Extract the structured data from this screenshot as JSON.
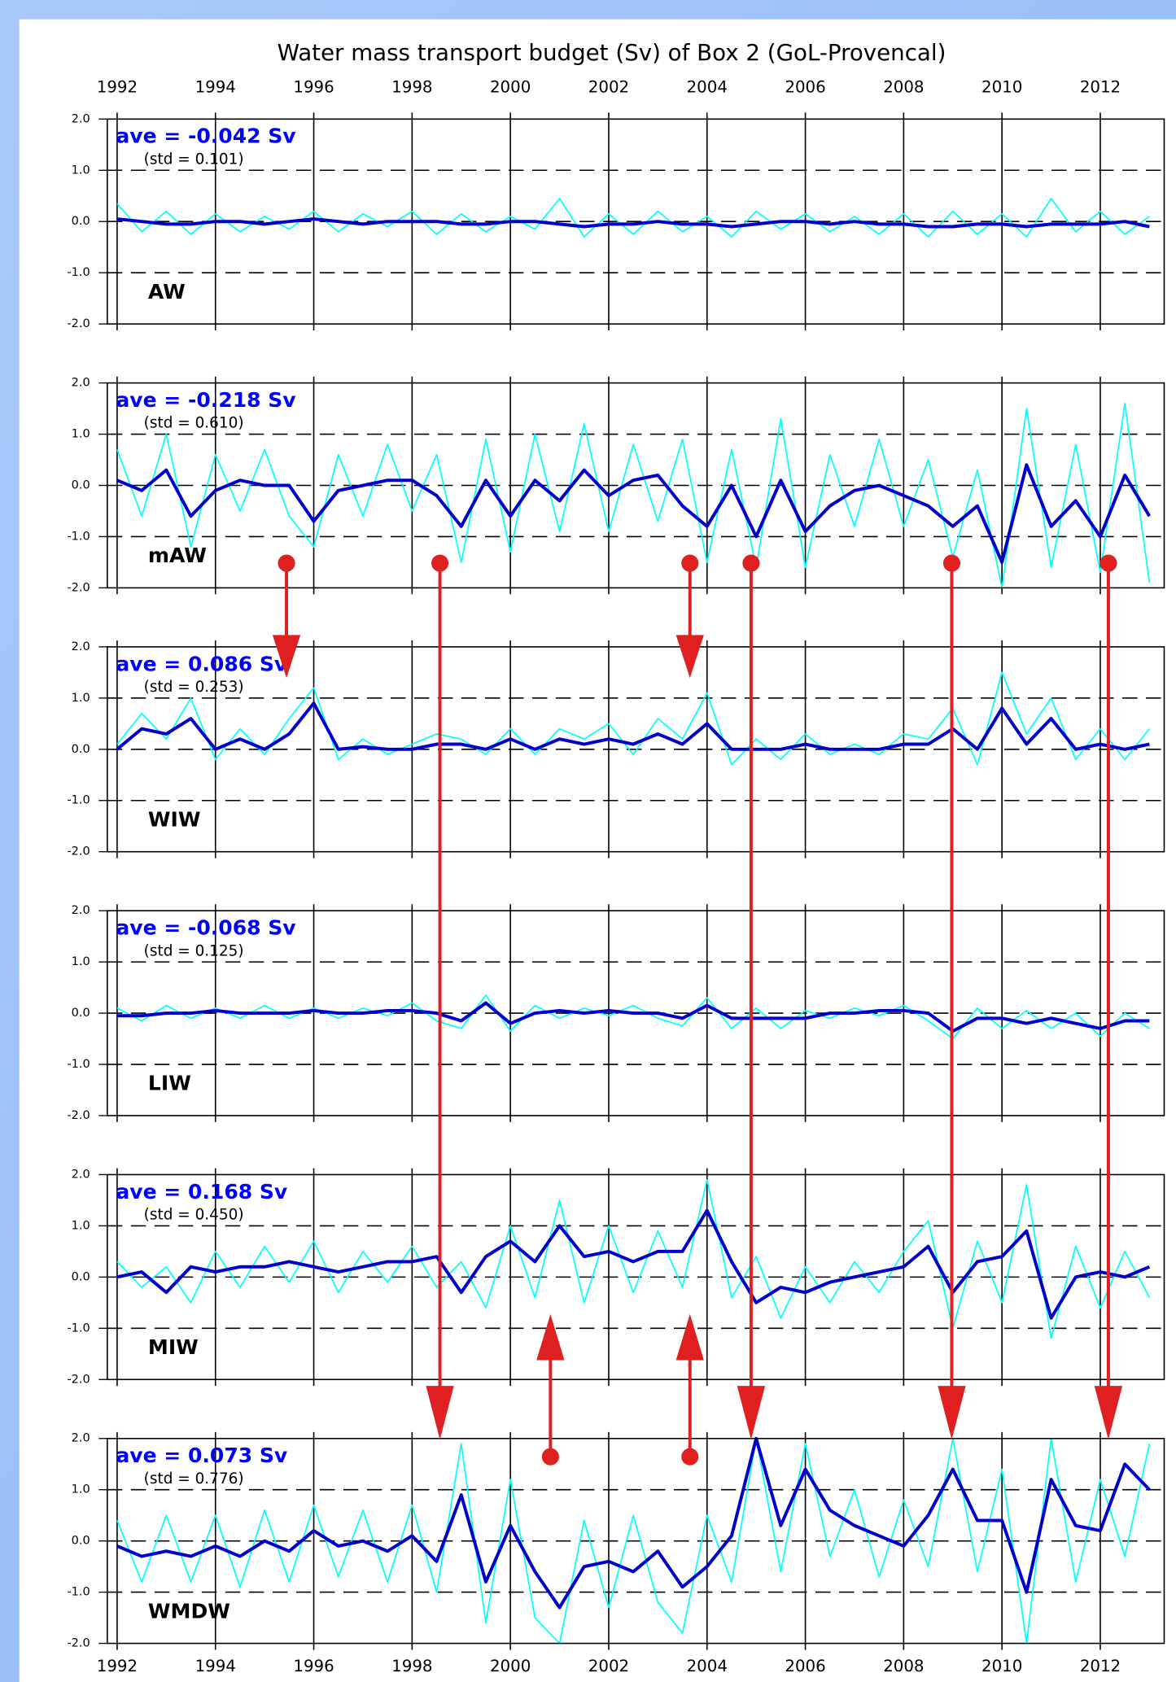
{
  "title": "Water mass transport budget (Sv) of Box 2 (GoL-Provencal)",
  "chart_data": [
    {
      "type": "line",
      "label": "AW",
      "annotations": [
        "ave = -0.042 Sv",
        "(std = 0.101)"
      ],
      "x": [
        1992,
        1992.5,
        1993,
        1993.5,
        1994,
        1994.5,
        1995,
        1995.5,
        1996,
        1996.5,
        1997,
        1997.5,
        1998,
        1998.5,
        1999,
        1999.5,
        2000,
        2000.5,
        2001,
        2001.5,
        2002,
        2002.5,
        2003,
        2003.5,
        2004,
        2004.5,
        2005,
        2005.5,
        2006,
        2006.5,
        2007,
        2007.5,
        2008,
        2008.5,
        2009,
        2009.5,
        2010,
        2010.5,
        2011,
        2011.5,
        2012,
        2012.5,
        2013
      ],
      "series": [
        {
          "color": "#00ffff",
          "values": [
            0.35,
            -0.2,
            0.2,
            -0.25,
            0.15,
            -0.2,
            0.1,
            -0.15,
            0.2,
            -0.2,
            0.15,
            -0.1,
            0.2,
            -0.25,
            0.15,
            -0.2,
            0.1,
            -0.15,
            0.45,
            -0.3,
            0.15,
            -0.25,
            0.2,
            -0.2,
            0.1,
            -0.3,
            0.2,
            -0.15,
            0.15,
            -0.2,
            0.1,
            -0.25,
            0.15,
            -0.3,
            0.2,
            -0.25,
            0.15,
            -0.3,
            0.45,
            -0.2,
            0.2,
            -0.25,
            0.1
          ]
        },
        {
          "color": "#0000cc",
          "values": [
            0.05,
            0.0,
            -0.05,
            -0.05,
            0.0,
            0.0,
            -0.05,
            0.0,
            0.05,
            0.0,
            -0.05,
            0.0,
            0.0,
            0.0,
            -0.05,
            -0.05,
            0.0,
            0.0,
            -0.05,
            -0.1,
            -0.05,
            -0.05,
            0.0,
            -0.05,
            -0.05,
            -0.1,
            -0.05,
            0.0,
            0.0,
            -0.05,
            0.0,
            -0.05,
            -0.05,
            -0.1,
            -0.1,
            -0.05,
            -0.05,
            -0.1,
            -0.05,
            -0.05,
            -0.05,
            0.0,
            -0.1
          ]
        }
      ],
      "xlim": [
        1991.8,
        2013.3
      ],
      "xticks": [
        1992,
        1994,
        1996,
        1998,
        2000,
        2002,
        2004,
        2006,
        2008,
        2010,
        2012
      ],
      "ylim": [
        -2,
        2
      ],
      "yticks": [
        {
          "value": -2,
          "label": "-2.0"
        },
        {
          "value": -1,
          "label": "-1.0"
        },
        {
          "value": 0,
          "label": "0.0"
        },
        {
          "value": 1,
          "label": "1.0"
        },
        {
          "value": 2,
          "label": "2.0"
        }
      ],
      "grid": true
    },
    {
      "type": "line",
      "label": "mAW",
      "annotations": [
        "ave = -0.218 Sv",
        "(std = 0.610)"
      ],
      "x": [
        1992,
        1992.5,
        1993,
        1993.5,
        1994,
        1994.5,
        1995,
        1995.5,
        1996,
        1996.5,
        1997,
        1997.5,
        1998,
        1998.5,
        1999,
        1999.5,
        2000,
        2000.5,
        2001,
        2001.5,
        2002,
        2002.5,
        2003,
        2003.5,
        2004,
        2004.5,
        2005,
        2005.5,
        2006,
        2006.5,
        2007,
        2007.5,
        2008,
        2008.5,
        2009,
        2009.5,
        2010,
        2010.5,
        2011,
        2011.5,
        2012,
        2012.5,
        2013
      ],
      "series": [
        {
          "color": "#00ffff",
          "values": [
            0.7,
            -0.6,
            1.0,
            -1.2,
            0.6,
            -0.5,
            0.7,
            -0.6,
            -1.2,
            0.6,
            -0.6,
            0.8,
            -0.5,
            0.6,
            -1.5,
            0.9,
            -1.3,
            1.0,
            -0.9,
            1.2,
            -0.9,
            0.8,
            -0.7,
            0.9,
            -1.5,
            0.7,
            -1.6,
            1.3,
            -1.6,
            0.6,
            -0.8,
            0.9,
            -0.8,
            0.5,
            -1.4,
            0.3,
            -2.0,
            1.5,
            -1.6,
            0.8,
            -1.7,
            1.6,
            -1.9
          ]
        },
        {
          "color": "#0000cc",
          "values": [
            0.1,
            -0.1,
            0.3,
            -0.6,
            -0.1,
            0.1,
            0.0,
            0.0,
            -0.7,
            -0.1,
            0.0,
            0.1,
            0.1,
            -0.2,
            -0.8,
            0.1,
            -0.6,
            0.1,
            -0.3,
            0.3,
            -0.2,
            0.1,
            0.2,
            -0.4,
            -0.8,
            0.0,
            -1.0,
            0.1,
            -0.9,
            -0.4,
            -0.1,
            0.0,
            -0.2,
            -0.4,
            -0.8,
            -0.4,
            -1.5,
            0.4,
            -0.8,
            -0.3,
            -1.0,
            0.2,
            -0.6
          ]
        }
      ],
      "xlim": [
        1991.8,
        2013.3
      ],
      "xticks": [
        1992,
        1994,
        1996,
        1998,
        2000,
        2002,
        2004,
        2006,
        2008,
        2010,
        2012
      ],
      "ylim": [
        -2,
        2
      ],
      "yticks": [
        {
          "value": -2,
          "label": "-2.0"
        },
        {
          "value": -1,
          "label": "-1.0"
        },
        {
          "value": 0,
          "label": "0.0"
        },
        {
          "value": 1,
          "label": "1.0"
        },
        {
          "value": 2,
          "label": "2.0"
        }
      ],
      "grid": true
    },
    {
      "type": "line",
      "label": "WIW",
      "annotations": [
        "ave = 0.086 Sv",
        "(std = 0.253)"
      ],
      "x": [
        1992,
        1992.5,
        1993,
        1993.5,
        1994,
        1994.5,
        1995,
        1995.5,
        1996,
        1996.5,
        1997,
        1997.5,
        1998,
        1998.5,
        1999,
        1999.5,
        2000,
        2000.5,
        2001,
        2001.5,
        2002,
        2002.5,
        2003,
        2003.5,
        2004,
        2004.5,
        2005,
        2005.5,
        2006,
        2006.5,
        2007,
        2007.5,
        2008,
        2008.5,
        2009,
        2009.5,
        2010,
        2010.5,
        2011,
        2011.5,
        2012,
        2012.5,
        2013
      ],
      "series": [
        {
          "color": "#00ffff",
          "values": [
            0.1,
            0.7,
            0.2,
            1.0,
            -0.2,
            0.4,
            -0.1,
            0.6,
            1.2,
            -0.2,
            0.2,
            -0.1,
            0.1,
            0.3,
            0.2,
            -0.1,
            0.4,
            -0.1,
            0.4,
            0.2,
            0.5,
            -0.1,
            0.6,
            0.2,
            1.1,
            -0.3,
            0.2,
            -0.2,
            0.3,
            -0.1,
            0.1,
            -0.1,
            0.3,
            0.2,
            0.8,
            -0.3,
            1.5,
            0.3,
            1.0,
            -0.2,
            0.4,
            -0.2,
            0.4
          ]
        },
        {
          "color": "#0000cc",
          "values": [
            0.0,
            0.4,
            0.3,
            0.6,
            0.0,
            0.2,
            0.0,
            0.3,
            0.9,
            0.0,
            0.05,
            0.0,
            0.0,
            0.1,
            0.1,
            0.0,
            0.2,
            0.0,
            0.2,
            0.1,
            0.2,
            0.1,
            0.3,
            0.1,
            0.5,
            0.0,
            0.0,
            0.0,
            0.1,
            0.0,
            0.0,
            0.0,
            0.1,
            0.1,
            0.4,
            0.0,
            0.8,
            0.1,
            0.6,
            0.0,
            0.1,
            0.0,
            0.1
          ]
        }
      ],
      "xlim": [
        1991.8,
        2013.3
      ],
      "xticks": [
        1992,
        1994,
        1996,
        1998,
        2000,
        2002,
        2004,
        2006,
        2008,
        2010,
        2012
      ],
      "ylim": [
        -2,
        2
      ],
      "yticks": [
        {
          "value": -2,
          "label": "-2.0"
        },
        {
          "value": -1,
          "label": "-1.0"
        },
        {
          "value": 0,
          "label": "0.0"
        },
        {
          "value": 1,
          "label": "1.0"
        },
        {
          "value": 2,
          "label": "2.0"
        }
      ],
      "grid": true
    },
    {
      "type": "line",
      "label": "LIW",
      "annotations": [
        "ave = -0.068 Sv",
        "(std = 0.125)"
      ],
      "x": [
        1992,
        1992.5,
        1993,
        1993.5,
        1994,
        1994.5,
        1995,
        1995.5,
        1996,
        1996.5,
        1997,
        1997.5,
        1998,
        1998.5,
        1999,
        1999.5,
        2000,
        2000.5,
        2001,
        2001.5,
        2002,
        2002.5,
        2003,
        2003.5,
        2004,
        2004.5,
        2005,
        2005.5,
        2006,
        2006.5,
        2007,
        2007.5,
        2008,
        2008.5,
        2009,
        2009.5,
        2010,
        2010.5,
        2011,
        2011.5,
        2012,
        2012.5,
        2013
      ],
      "series": [
        {
          "color": "#00ffff",
          "values": [
            0.1,
            -0.15,
            0.15,
            -0.1,
            0.1,
            -0.1,
            0.15,
            -0.1,
            0.1,
            -0.1,
            0.1,
            -0.05,
            0.2,
            -0.15,
            -0.3,
            0.35,
            -0.35,
            0.15,
            -0.1,
            0.1,
            -0.05,
            0.15,
            -0.1,
            -0.25,
            0.3,
            -0.3,
            0.1,
            -0.3,
            0.05,
            -0.1,
            0.1,
            -0.05,
            0.15,
            -0.15,
            -0.5,
            0.1,
            -0.3,
            0.05,
            -0.3,
            0.0,
            -0.45,
            0.0,
            -0.3
          ]
        },
        {
          "color": "#0000cc",
          "values": [
            -0.05,
            -0.05,
            0.0,
            0.0,
            0.05,
            0.0,
            0.0,
            0.0,
            0.05,
            0.0,
            0.0,
            0.05,
            0.05,
            0.0,
            -0.15,
            0.2,
            -0.2,
            0.0,
            0.05,
            0.0,
            0.05,
            0.0,
            0.0,
            -0.1,
            0.15,
            -0.1,
            -0.1,
            -0.1,
            -0.1,
            0.0,
            0.0,
            0.05,
            0.05,
            0.0,
            -0.35,
            -0.1,
            -0.1,
            -0.2,
            -0.1,
            -0.2,
            -0.3,
            -0.15,
            -0.15
          ]
        }
      ],
      "xlim": [
        1991.8,
        2013.3
      ],
      "xticks": [
        1992,
        1994,
        1996,
        1998,
        2000,
        2002,
        2004,
        2006,
        2008,
        2010,
        2012
      ],
      "ylim": [
        -2,
        2
      ],
      "yticks": [
        {
          "value": -2,
          "label": "-2.0"
        },
        {
          "value": -1,
          "label": "-1.0"
        },
        {
          "value": 0,
          "label": "0.0"
        },
        {
          "value": 1,
          "label": "1.0"
        },
        {
          "value": 2,
          "label": "2.0"
        }
      ],
      "grid": true
    },
    {
      "type": "line",
      "label": "MIW",
      "annotations": [
        "ave = 0.168 Sv",
        "(std = 0.450)"
      ],
      "x": [
        1992,
        1992.5,
        1993,
        1993.5,
        1994,
        1994.5,
        1995,
        1995.5,
        1996,
        1996.5,
        1997,
        1997.5,
        1998,
        1998.5,
        1999,
        1999.5,
        2000,
        2000.5,
        2001,
        2001.5,
        2002,
        2002.5,
        2003,
        2003.5,
        2004,
        2004.5,
        2005,
        2005.5,
        2006,
        2006.5,
        2007,
        2007.5,
        2008,
        2008.5,
        2009,
        2009.5,
        2010,
        2010.5,
        2011,
        2011.5,
        2012,
        2012.5,
        2013
      ],
      "series": [
        {
          "color": "#00ffff",
          "values": [
            0.3,
            -0.2,
            0.2,
            -0.5,
            0.5,
            -0.2,
            0.6,
            -0.1,
            0.7,
            -0.3,
            0.5,
            -0.1,
            0.6,
            -0.2,
            0.3,
            -0.6,
            1.0,
            -0.4,
            1.5,
            -0.5,
            1.0,
            -0.3,
            0.9,
            -0.2,
            1.9,
            -0.4,
            0.4,
            -0.8,
            0.2,
            -0.5,
            0.3,
            -0.3,
            0.5,
            1.1,
            -1.0,
            0.7,
            -0.5,
            1.8,
            -1.2,
            0.6,
            -0.6,
            0.5,
            -0.4
          ]
        },
        {
          "color": "#0000cc",
          "values": [
            0.0,
            0.1,
            -0.3,
            0.2,
            0.1,
            0.2,
            0.2,
            0.3,
            0.2,
            0.1,
            0.2,
            0.3,
            0.3,
            0.4,
            -0.3,
            0.4,
            0.7,
            0.3,
            1.0,
            0.4,
            0.5,
            0.3,
            0.5,
            0.5,
            1.3,
            0.3,
            -0.5,
            -0.2,
            -0.3,
            -0.1,
            0.0,
            0.1,
            0.2,
            0.6,
            -0.3,
            0.3,
            0.4,
            0.9,
            -0.8,
            0.0,
            0.1,
            0.0,
            0.2
          ]
        }
      ],
      "xlim": [
        1991.8,
        2013.3
      ],
      "xticks": [
        1992,
        1994,
        1996,
        1998,
        2000,
        2002,
        2004,
        2006,
        2008,
        2010,
        2012
      ],
      "ylim": [
        -2,
        2
      ],
      "yticks": [
        {
          "value": -2,
          "label": "-2.0"
        },
        {
          "value": -1,
          "label": "-1.0"
        },
        {
          "value": 0,
          "label": "0.0"
        },
        {
          "value": 1,
          "label": "1.0"
        },
        {
          "value": 2,
          "label": "2.0"
        }
      ],
      "grid": true
    },
    {
      "type": "line",
      "label": "WMDW",
      "annotations": [
        "ave = 0.073 Sv",
        "(std = 0.776)"
      ],
      "x": [
        1992,
        1992.5,
        1993,
        1993.5,
        1994,
        1994.5,
        1995,
        1995.5,
        1996,
        1996.5,
        1997,
        1997.5,
        1998,
        1998.5,
        1999,
        1999.5,
        2000,
        2000.5,
        2001,
        2001.5,
        2002,
        2002.5,
        2003,
        2003.5,
        2004,
        2004.5,
        2005,
        2005.5,
        2006,
        2006.5,
        2007,
        2007.5,
        2008,
        2008.5,
        2009,
        2009.5,
        2010,
        2010.5,
        2011,
        2011.5,
        2012,
        2012.5,
        2013
      ],
      "series": [
        {
          "color": "#00ffff",
          "values": [
            0.4,
            -0.8,
            0.5,
            -0.8,
            0.5,
            -0.9,
            0.6,
            -0.8,
            0.7,
            -0.7,
            0.6,
            -0.8,
            0.7,
            -1.0,
            1.9,
            -1.6,
            1.2,
            -1.5,
            -2.0,
            0.4,
            -1.3,
            0.5,
            -1.2,
            -1.8,
            0.5,
            -0.8,
            2.0,
            -0.6,
            1.9,
            -0.3,
            1.0,
            -0.7,
            0.8,
            -0.5,
            2.0,
            -0.6,
            1.4,
            -2.0,
            2.0,
            -0.8,
            1.2,
            -0.3,
            1.9
          ]
        },
        {
          "color": "#0000cc",
          "values": [
            -0.1,
            -0.3,
            -0.2,
            -0.3,
            -0.1,
            -0.3,
            0.0,
            -0.2,
            0.2,
            -0.1,
            0.0,
            -0.2,
            0.1,
            -0.4,
            0.9,
            -0.8,
            0.3,
            -0.6,
            -1.3,
            -0.5,
            -0.4,
            -0.6,
            -0.2,
            -0.9,
            -0.5,
            0.1,
            2.0,
            0.3,
            1.4,
            0.6,
            0.3,
            0.1,
            -0.1,
            0.5,
            1.4,
            0.4,
            0.4,
            -1.0,
            1.2,
            0.3,
            0.2,
            1.5,
            1.0
          ]
        }
      ],
      "xlim": [
        1991.8,
        2013.3
      ],
      "xticks": [
        1992,
        1994,
        1996,
        1998,
        2000,
        2002,
        2004,
        2006,
        2008,
        2010,
        2012
      ],
      "ylim": [
        -2,
        2
      ],
      "yticks": [
        {
          "value": -2,
          "label": "-2.0"
        },
        {
          "value": -1,
          "label": "-1.0"
        },
        {
          "value": 0,
          "label": "0.0"
        },
        {
          "value": 1,
          "label": "1.0"
        },
        {
          "value": 2,
          "label": "2.0"
        }
      ],
      "grid": true
    }
  ]
}
